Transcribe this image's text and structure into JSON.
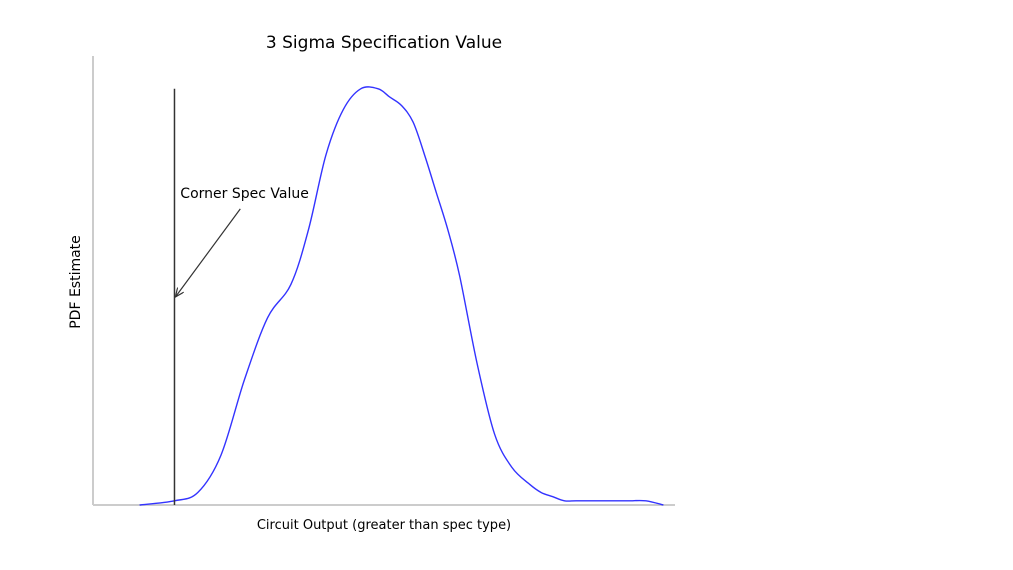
{
  "chart_data": {
    "type": "line",
    "title": "3 Sigma Specification Value",
    "xlabel": "Circuit Output (greater than spec type)",
    "ylabel": "PDF Estimate",
    "xlim": [
      0,
      100
    ],
    "ylim": [
      0,
      1.05
    ],
    "grid": false,
    "x_ticks_shown": false,
    "y_ticks_shown": false,
    "series": [
      {
        "color": "#3333ff",
        "x": [
          8,
          14,
          18,
          22,
          26,
          30,
          34,
          37,
          40,
          43,
          46,
          49,
          51,
          53,
          55,
          57,
          59,
          61,
          63,
          66,
          69,
          72,
          75,
          77,
          79,
          81,
          83,
          86,
          89,
          92,
          95,
          98
        ],
        "y": [
          0.0,
          0.01,
          0.03,
          0.12,
          0.3,
          0.45,
          0.53,
          0.66,
          0.84,
          0.95,
          1.0,
          1.0,
          0.98,
          0.96,
          0.92,
          0.84,
          0.75,
          0.66,
          0.55,
          0.34,
          0.17,
          0.09,
          0.05,
          0.03,
          0.02,
          0.01,
          0.01,
          0.01,
          0.01,
          0.01,
          0.01,
          0.0
        ]
      }
    ],
    "annotations": [
      {
        "type": "vline",
        "x": 14,
        "y_top": 1.0,
        "color": "#333333"
      },
      {
        "type": "arrow-label",
        "text": "Corner Spec Value",
        "target_x": 14,
        "target_y": 0.5,
        "text_x": 15,
        "text_y": 0.75
      }
    ]
  }
}
